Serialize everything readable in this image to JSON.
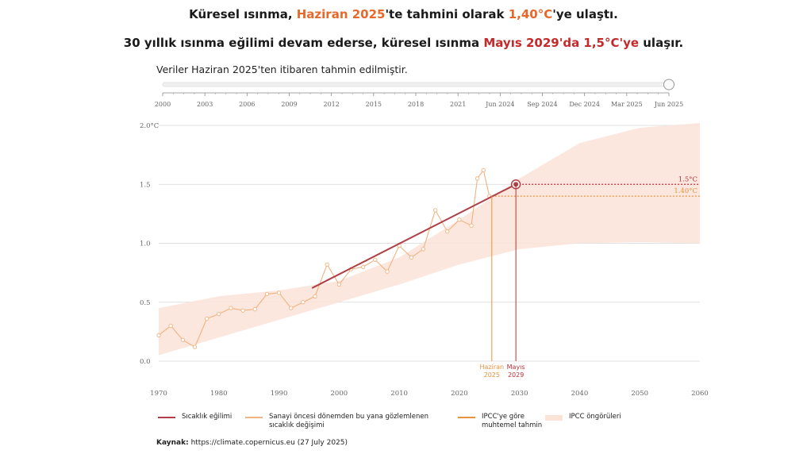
{
  "header": {
    "line1": {
      "part1": "Küresel ısınma, ",
      "highlight1": "Haziran 2025",
      "part2": "'te tahmini olarak ",
      "highlight2": "1,40°C",
      "part3": "'ye ulaştı."
    },
    "line2": {
      "part1": "30 yıllık ısınma eğilimi devam ederse, küresel ısınma ",
      "highlight": "Mayıs 2029'da 1,5°C'ye",
      "part2": "  ulaşır."
    },
    "subtitle": "Veriler Haziran 2025'ten itibaren tahmin edilmiştir."
  },
  "timeline": {
    "labels": [
      "2000",
      "2003",
      "2006",
      "2009",
      "2012",
      "2015",
      "2018",
      "2021",
      "Jun 2024",
      "Sep 2024",
      "Dec 2024",
      "Mar 2025",
      "Jun 2025"
    ],
    "position": 1.0
  },
  "chart_data": {
    "type": "line",
    "xlim": [
      1970,
      2060
    ],
    "ylim": [
      0.0,
      2.0
    ],
    "x_ticks": [
      "1970",
      "1980",
      "1990",
      "2000",
      "2010",
      "2020",
      "2030",
      "2040",
      "2050",
      "2060"
    ],
    "y_ticks": [
      "0.0",
      "0.5",
      "1.0",
      "1.5",
      "2.0°C"
    ],
    "y_tick_values": [
      0.0,
      0.5,
      1.0,
      1.5,
      2.0
    ],
    "reference_lines": [
      {
        "label": "1.5°C",
        "value": 1.5,
        "color": "#b8323a"
      },
      {
        "label": "1.40°C",
        "value": 1.4,
        "color": "#e8923c"
      }
    ],
    "markers": [
      {
        "label": "Haziran 2025",
        "x": 2025.4,
        "color": "#e8923c"
      },
      {
        "label": "Mayıs 2029",
        "x": 2029.4,
        "color": "#b8323a"
      }
    ],
    "series": [
      {
        "name": "Sıcaklık eğilimi",
        "color": "#b04048",
        "x": [
          1995.5,
          2029.4
        ],
        "y": [
          0.62,
          1.5
        ]
      },
      {
        "name": "Sanayi öncesi dönemden bu yana gözlemlenen sıcaklık değişimi",
        "color": "#f2b27d",
        "x": [
          1970,
          1972,
          1974,
          1976,
          1978,
          1980,
          1982,
          1984,
          1986,
          1988,
          1990,
          1992,
          1994,
          1996,
          1998,
          2000,
          2002,
          2004,
          2006,
          2008,
          2010,
          2012,
          2014,
          2016,
          2018,
          2020,
          2022,
          2023,
          2024,
          2025
        ],
        "y": [
          0.22,
          0.3,
          0.18,
          0.12,
          0.36,
          0.4,
          0.45,
          0.43,
          0.44,
          0.57,
          0.58,
          0.45,
          0.5,
          0.55,
          0.82,
          0.65,
          0.78,
          0.8,
          0.86,
          0.76,
          0.98,
          0.88,
          0.95,
          1.28,
          1.1,
          1.2,
          1.15,
          1.55,
          1.62,
          1.4
        ]
      },
      {
        "name": "IPCC'ye göre muhtemel tahmin",
        "color": "#e8923c"
      },
      {
        "name": "IPCC öngörüleri",
        "color": "#fbe3d8",
        "x": [
          1970,
          1980,
          1990,
          2000,
          2010,
          2020,
          2030,
          2040,
          2050,
          2060
        ],
        "lower": [
          0.05,
          0.2,
          0.35,
          0.5,
          0.65,
          0.82,
          0.95,
          1.0,
          1.01,
          1.0
        ],
        "upper": [
          0.45,
          0.55,
          0.6,
          0.68,
          0.88,
          1.2,
          1.55,
          1.85,
          1.98,
          2.02
        ]
      }
    ]
  },
  "legend": {
    "items": [
      {
        "label": "Sıcaklık eğilimi",
        "color": "#b04048"
      },
      {
        "label": "Sanayi öncesi dönemden bu yana gözlemlenen sıcaklık değişimi",
        "color": "#f2b27d"
      },
      {
        "label": "IPCC'ye göre muhtemel tahmin",
        "color": "#e8923c"
      },
      {
        "label": "IPCC öngörüleri",
        "color": "#fbe3d8"
      }
    ]
  },
  "source": {
    "label": "Kaynak:",
    "text": " https://climate.copernicus.eu (27 July 2025)"
  }
}
